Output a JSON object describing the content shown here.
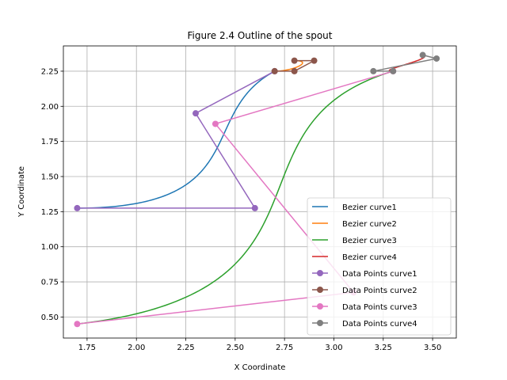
{
  "chart_data": {
    "type": "line",
    "title": "Figure 2.4 Outline of the spout",
    "xlabel": "X Coordinate",
    "ylabel": "Y Coordinate",
    "xlim": [
      1.63,
      3.62
    ],
    "ylim": [
      0.35,
      2.43
    ],
    "xticks": [
      "1.75",
      "2.00",
      "2.25",
      "2.50",
      "2.75",
      "3.00",
      "3.25",
      "3.50"
    ],
    "yticks": [
      "0.50",
      "0.75",
      "1.00",
      "1.25",
      "1.50",
      "1.75",
      "2.00",
      "2.25"
    ],
    "xtick_values": [
      1.75,
      2.0,
      2.25,
      2.5,
      2.75,
      3.0,
      3.25,
      3.5
    ],
    "ytick_values": [
      0.5,
      0.75,
      1.0,
      1.25,
      1.5,
      1.75,
      2.0,
      2.25
    ],
    "grid": true,
    "legend_position": "lower right",
    "bezier_curves": [
      {
        "name": "Bezier curve1",
        "color": "#1f77b4",
        "control_points": [
          [
            1.7,
            1.275
          ],
          [
            2.6,
            1.275
          ],
          [
            2.3,
            1.95
          ],
          [
            2.7,
            2.25
          ]
        ]
      },
      {
        "name": "Bezier curve2",
        "color": "#ff7f0e",
        "control_points": [
          [
            2.7,
            2.25
          ],
          [
            2.8,
            2.25
          ],
          [
            2.9,
            2.325
          ],
          [
            2.8,
            2.325
          ]
        ]
      },
      {
        "name": "Bezier curve3",
        "color": "#2ca02c",
        "control_points": [
          [
            1.7,
            0.45
          ],
          [
            3.1,
            0.675
          ],
          [
            2.4,
            1.875
          ],
          [
            3.3,
            2.25
          ]
        ]
      },
      {
        "name": "Bezier curve4",
        "color": "#d62728",
        "control_points": [
          [
            3.3,
            2.25
          ],
          [
            3.2,
            2.25
          ],
          [
            3.52,
            2.34
          ],
          [
            3.45,
            2.365
          ]
        ]
      }
    ],
    "data_point_series": [
      {
        "name": "Data Points curve1",
        "color": "#9467bd",
        "points": [
          [
            1.7,
            1.275
          ],
          [
            2.6,
            1.275
          ],
          [
            2.3,
            1.95
          ],
          [
            2.7,
            2.25
          ]
        ]
      },
      {
        "name": "Data Points curve2",
        "color": "#8c564b",
        "points": [
          [
            2.7,
            2.25
          ],
          [
            2.8,
            2.25
          ],
          [
            2.9,
            2.325
          ],
          [
            2.8,
            2.325
          ]
        ]
      },
      {
        "name": "Data Points curve3",
        "color": "#e377c2",
        "points": [
          [
            1.7,
            0.45
          ],
          [
            3.1,
            0.675
          ],
          [
            2.4,
            1.875
          ],
          [
            3.3,
            2.25
          ]
        ]
      },
      {
        "name": "Data Points curve4",
        "color": "#7f7f7f",
        "points": [
          [
            3.3,
            2.25
          ],
          [
            3.2,
            2.25
          ],
          [
            3.52,
            2.34
          ],
          [
            3.45,
            2.365
          ]
        ]
      }
    ]
  }
}
